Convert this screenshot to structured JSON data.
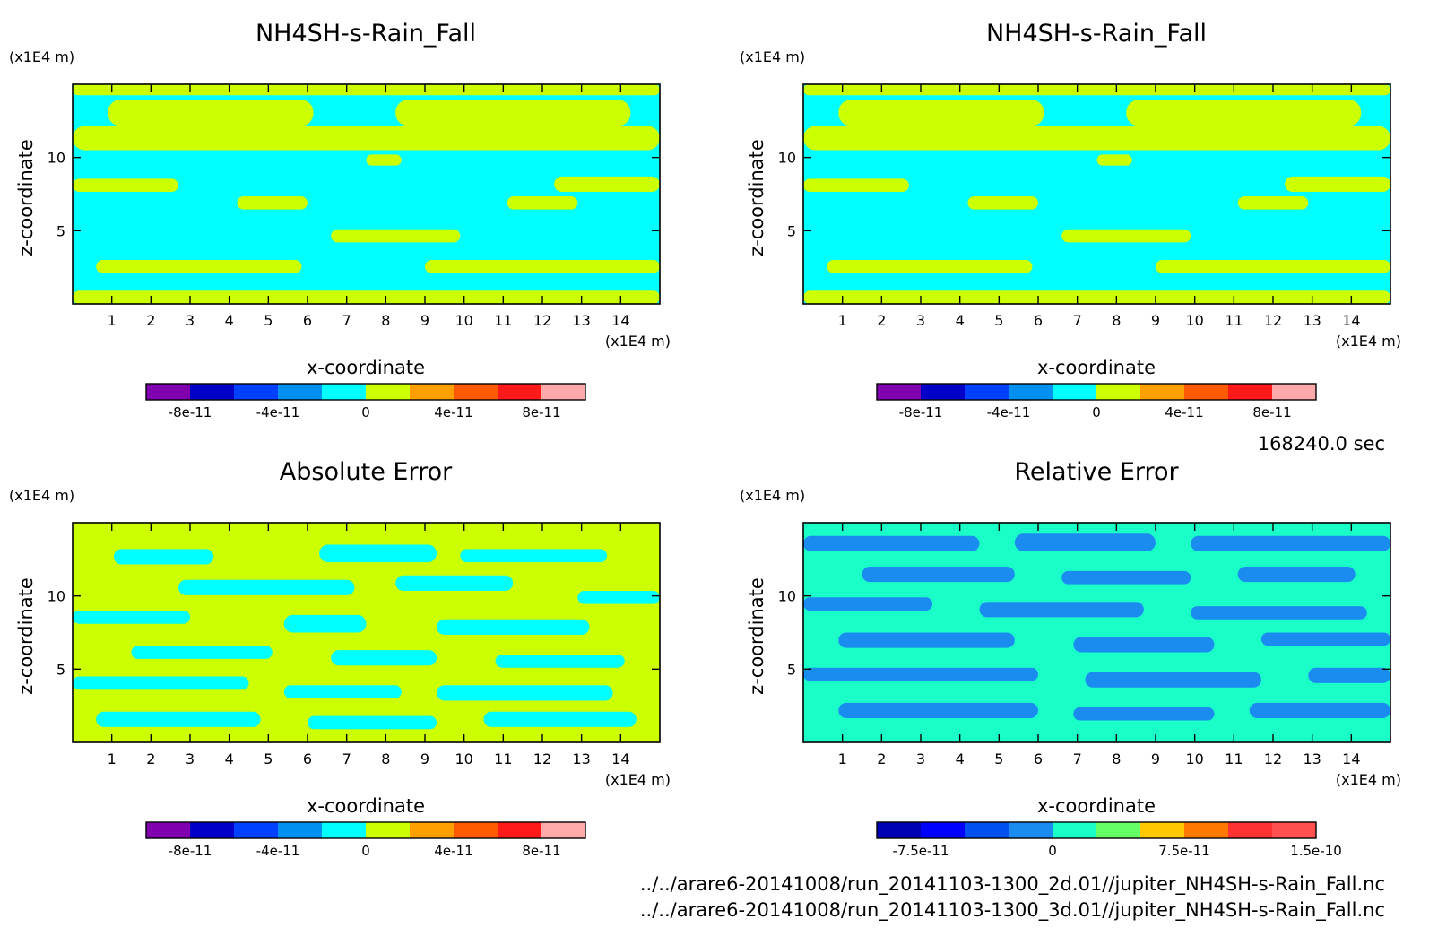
{
  "time_label": "168240.0 sec",
  "files": [
    "../../arare6-20141008/run_20141103-1300_2d.01//jupiter_NH4SH-s-Rain_Fall.nc",
    "../../arare6-20141008/run_20141103-1300_3d.01//jupiter_NH4SH-s-Rain_Fall.nc"
  ],
  "colors": {
    "cyan": "#00ffff",
    "yellow_green": "#ccff00",
    "blue_mid": "#1a8cf0",
    "teal_green": "#1affc8"
  },
  "chart_data": [
    {
      "type": "heatmap",
      "title": "NH4SH-s-Rain_Fall",
      "xlabel": "x-coordinate",
      "ylabel": "z-coordinate",
      "x_unit": "(x1E4 m)",
      "y_unit": "(x1E4 m)",
      "xlim": [
        0,
        15
      ],
      "ylim": [
        0,
        15
      ],
      "xticks": [
        "1",
        "2",
        "3",
        "4",
        "5",
        "6",
        "7",
        "8",
        "9",
        "10",
        "11",
        "12",
        "13",
        "14"
      ],
      "yticks": [
        "5",
        "10"
      ],
      "dominant_values": [
        "0",
        "0 to 1e-11"
      ],
      "colorbar": {
        "colors": [
          "#8000b0",
          "#0000c8",
          "#0040ff",
          "#0090f0",
          "#00ffff",
          "#ccff00",
          "#ffa000",
          "#ff5a00",
          "#ff1a1a",
          "#ffaaaa"
        ],
        "ticks": [
          "-8e-11",
          "-4e-11",
          "0",
          "4e-11",
          "8e-11"
        ],
        "range": [
          -1e-10,
          1e-10
        ]
      }
    },
    {
      "type": "heatmap",
      "title": "NH4SH-s-Rain_Fall",
      "xlabel": "x-coordinate",
      "ylabel": "z-coordinate",
      "x_unit": "(x1E4 m)",
      "y_unit": "(x1E4 m)",
      "xlim": [
        0,
        15
      ],
      "ylim": [
        0,
        15
      ],
      "xticks": [
        "1",
        "2",
        "3",
        "4",
        "5",
        "6",
        "7",
        "8",
        "9",
        "10",
        "11",
        "12",
        "13",
        "14"
      ],
      "yticks": [
        "5",
        "10"
      ],
      "dominant_values": [
        "0",
        "0 to 1e-11"
      ],
      "colorbar": {
        "colors": [
          "#8000b0",
          "#0000c8",
          "#0040ff",
          "#0090f0",
          "#00ffff",
          "#ccff00",
          "#ffa000",
          "#ff5a00",
          "#ff1a1a",
          "#ffaaaa"
        ],
        "ticks": [
          "-8e-11",
          "-4e-11",
          "0",
          "4e-11",
          "8e-11"
        ],
        "range": [
          -1e-10,
          1e-10
        ]
      }
    },
    {
      "type": "heatmap",
      "title": "Absolute Error",
      "xlabel": "x-coordinate",
      "ylabel": "z-coordinate",
      "x_unit": "(x1E4 m)",
      "y_unit": "(x1E4 m)",
      "xlim": [
        0,
        15
      ],
      "ylim": [
        0,
        15
      ],
      "xticks": [
        "1",
        "2",
        "3",
        "4",
        "5",
        "6",
        "7",
        "8",
        "9",
        "10",
        "11",
        "12",
        "13",
        "14"
      ],
      "yticks": [
        "5",
        "10"
      ],
      "dominant_values": [
        "0",
        "0 to 1e-11"
      ],
      "colorbar": {
        "colors": [
          "#8000b0",
          "#0000c8",
          "#0040ff",
          "#0090f0",
          "#00ffff",
          "#ccff00",
          "#ffa000",
          "#ff5a00",
          "#ff1a1a",
          "#ffaaaa"
        ],
        "ticks": [
          "-8e-11",
          "-4e-11",
          "0",
          "4e-11",
          "8e-11"
        ],
        "range": [
          -1e-10,
          1e-10
        ]
      }
    },
    {
      "type": "heatmap",
      "title": "Relative Error",
      "xlabel": "x-coordinate",
      "ylabel": "z-coordinate",
      "x_unit": "(x1E4 m)",
      "y_unit": "(x1E4 m)",
      "xlim": [
        0,
        15
      ],
      "ylim": [
        0,
        15
      ],
      "xticks": [
        "1",
        "2",
        "3",
        "4",
        "5",
        "6",
        "7",
        "8",
        "9",
        "10",
        "11",
        "12",
        "13",
        "14"
      ],
      "yticks": [
        "5",
        "10"
      ],
      "dominant_values": [
        "-2.5e-11 to 0",
        "0 to 2.5e-11"
      ],
      "colorbar": {
        "colors": [
          "#0000b4",
          "#0000ff",
          "#0050f0",
          "#1a8cf0",
          "#1affc8",
          "#66ff66",
          "#ffc800",
          "#ff7800",
          "#ff3232",
          "#ff5050"
        ],
        "ticks": [
          "-7.5e-11",
          "0",
          "7.5e-11",
          "1.5e-10"
        ],
        "range": [
          -1e-10,
          1.5e-10
        ]
      }
    }
  ]
}
